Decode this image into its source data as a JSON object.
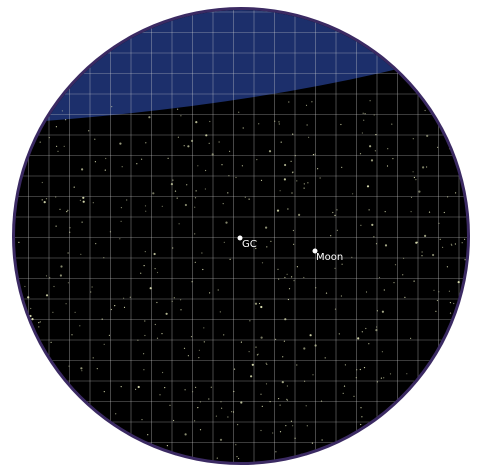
{
  "sky": {
    "colors": {
      "rim": "#3b2a63",
      "sky_bg": "#000000",
      "above_horizon_band": "#1c2f6b",
      "grid": "#d9d9d9",
      "stars": "#d8dcb0"
    },
    "objects": [
      {
        "id": "gc",
        "label": "GC",
        "icon": "galactic-center-marker"
      },
      {
        "id": "moon",
        "label": "Moon",
        "icon": "moon-marker"
      }
    ]
  }
}
